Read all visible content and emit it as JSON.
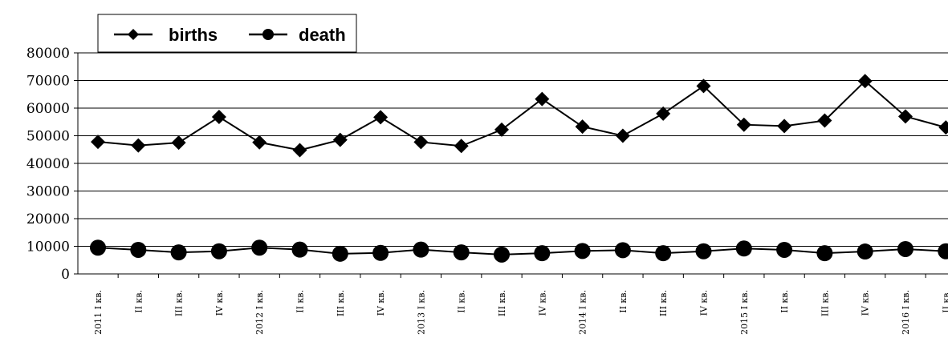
{
  "chart_data": {
    "type": "line",
    "title": "",
    "xlabel": "",
    "ylabel": "",
    "ylim": [
      0,
      80000
    ],
    "yticks": [
      0,
      10000,
      20000,
      30000,
      40000,
      50000,
      60000,
      70000,
      80000
    ],
    "grid": true,
    "legend_position": "top-left",
    "categories": [
      "2011 I кв.",
      "II кв.",
      "III кв.",
      "IV кв.",
      "2012 I кв.",
      "II кв.",
      "III кв.",
      "IV кв.",
      "2013 I кв.",
      "II кв.",
      "III кв.",
      "IV кв.",
      "2014 I кв.",
      "II кв.",
      "III кв.",
      "IV кв.",
      "2015 I кв.",
      "II кв.",
      "III кв.",
      "IV кв.",
      "2016 I кв.",
      "II кв."
    ],
    "series": [
      {
        "name": "births",
        "marker": "diamond",
        "color": "#000000",
        "values": [
          47800,
          46500,
          47500,
          56800,
          47600,
          44800,
          48500,
          56700,
          47700,
          46300,
          52200,
          63300,
          53300,
          50000,
          58000,
          68000,
          54000,
          53500,
          55500,
          69800,
          57000,
          53000
        ]
      },
      {
        "name": "death",
        "marker": "circle",
        "color": "#000000",
        "values": [
          9500,
          8700,
          7800,
          8200,
          9500,
          8800,
          7300,
          7600,
          8800,
          7800,
          7000,
          7500,
          8300,
          8600,
          7500,
          8200,
          9200,
          8700,
          7500,
          8100,
          9000,
          8200
        ]
      }
    ]
  }
}
